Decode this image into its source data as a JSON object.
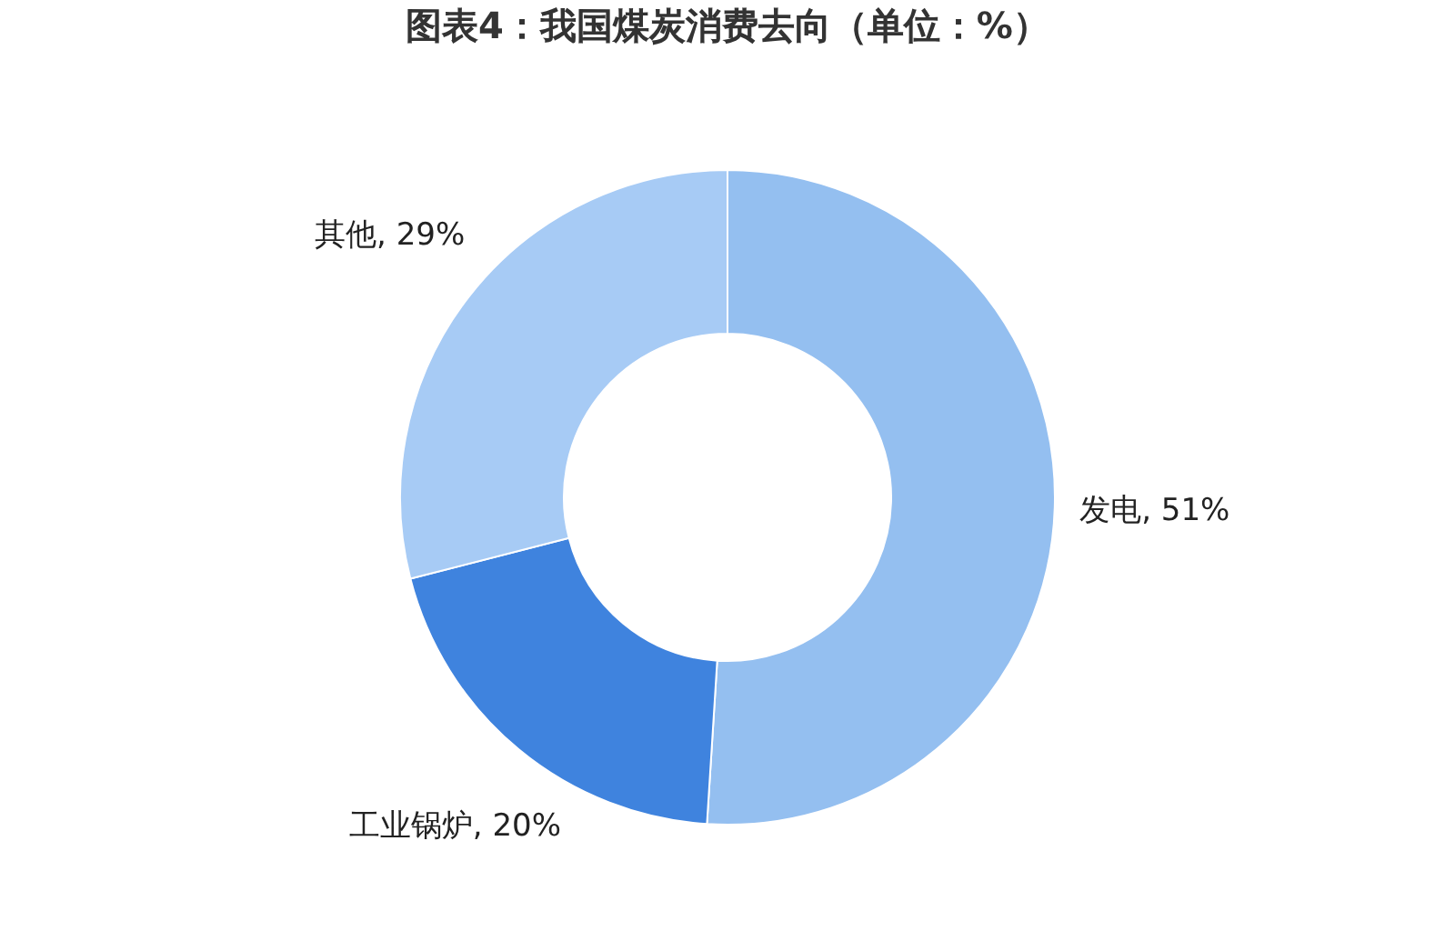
{
  "chart_data": {
    "type": "donut",
    "title": "图表4：我国煤炭消费去向（单位：%）",
    "categories": [
      "发电",
      "工业锅炉",
      "其他"
    ],
    "values": [
      51,
      20,
      29
    ],
    "value_labels": [
      "51%",
      "20%",
      "29%"
    ],
    "colors": [
      "#94bff0",
      "#3f83de",
      "#a7cbf5"
    ],
    "legend": false
  }
}
